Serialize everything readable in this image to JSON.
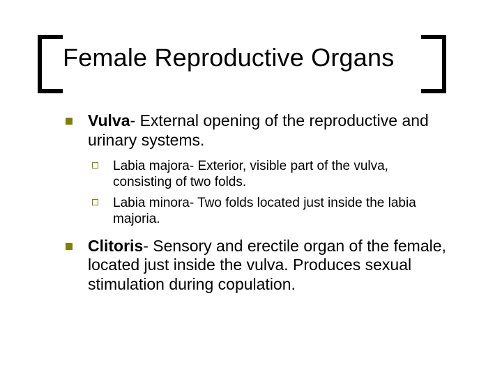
{
  "colors": {
    "background": "#ffffff",
    "text": "#000000",
    "bracket": "#000000",
    "bullet_accent": "#808000"
  },
  "typography": {
    "title_fontsize": 36,
    "level1_fontsize": 23,
    "level2_fontsize": 19,
    "font_family": "Arial"
  },
  "layout": {
    "slide_width": 720,
    "slide_height": 540,
    "bracket_thickness": 6,
    "bracket_height": 72
  },
  "title": "Female Reproductive Organs",
  "bullets": [
    {
      "term": "Vulva",
      "rest": "- External opening of the reproductive and urinary systems.",
      "sub": [
        "Labia majora- Exterior, visible part of the vulva, consisting of two folds.",
        "Labia minora- Two folds located just inside the labia majoria."
      ]
    },
    {
      "term": "Clitoris",
      "rest": "- Sensory and erectile organ of the female, located just inside the vulva. Produces sexual stimulation during copulation.",
      "sub": []
    }
  ]
}
